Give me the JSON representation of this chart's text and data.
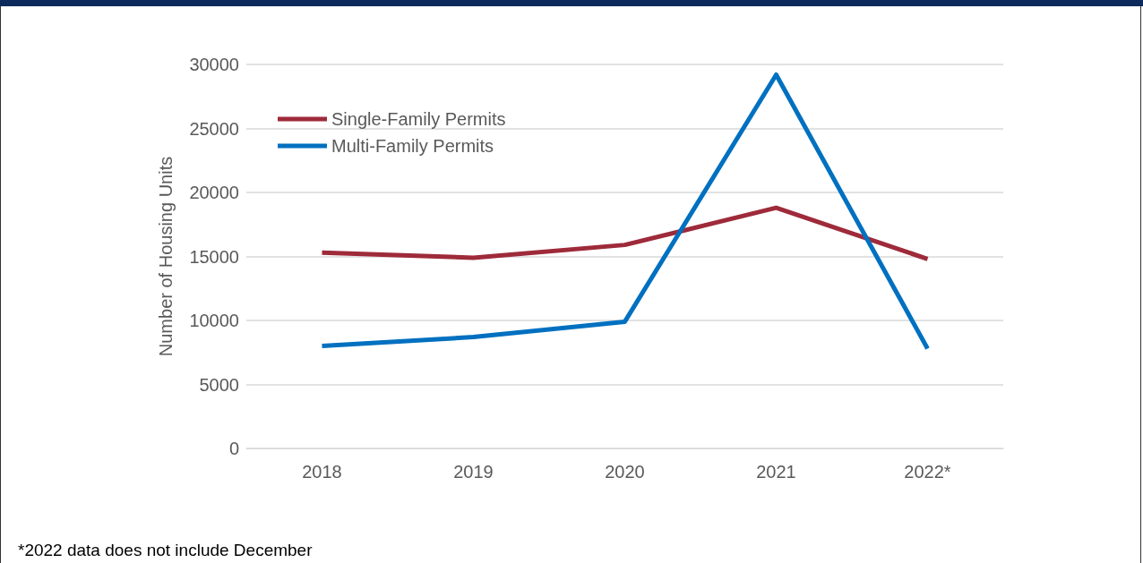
{
  "chart_data": {
    "type": "line",
    "ylabel": "Number of Housing Units",
    "categories": [
      "2018",
      "2019",
      "2020",
      "2021",
      "2022*"
    ],
    "series": [
      {
        "name": "Single-Family Permits",
        "color": "#9e2a3a",
        "values": [
          15300,
          14900,
          15900,
          18800,
          14800
        ]
      },
      {
        "name": "Multi-Family Permits",
        "color": "#0070c0",
        "values": [
          8000,
          8700,
          9900,
          29200,
          7800
        ]
      }
    ],
    "ylim": [
      0,
      30000
    ],
    "yticks": [
      0,
      5000,
      10000,
      15000,
      20000,
      25000,
      30000
    ],
    "grid": "y",
    "legend": "top left",
    "marker": "none",
    "line_style": "solid",
    "annotations": [
      "*2022 data does not include December"
    ]
  }
}
